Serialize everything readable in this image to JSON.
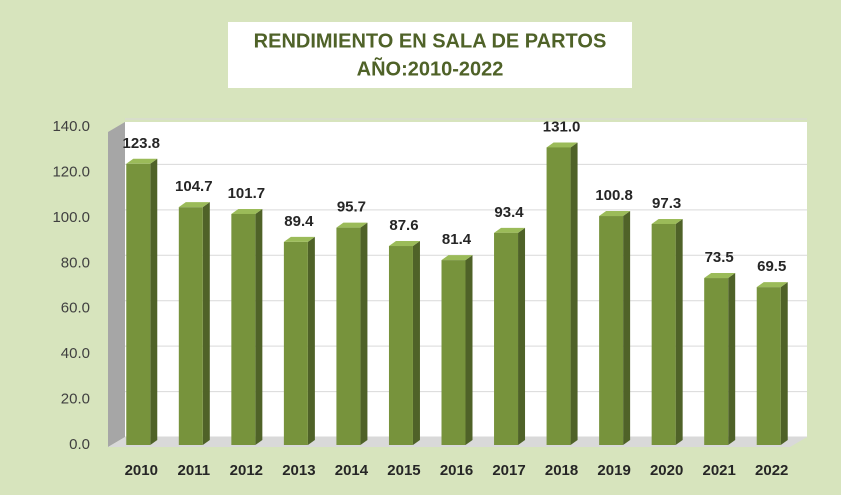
{
  "chart_data": {
    "type": "bar",
    "title": "RENDIMIENTO EN SALA DE PARTOS",
    "subtitle": "AÑO:2010-2022",
    "categories": [
      "2010",
      "2011",
      "2012",
      "2013",
      "2014",
      "2015",
      "2016",
      "2017",
      "2018",
      "2019",
      "2020",
      "2021",
      "2022"
    ],
    "values": [
      123.8,
      104.7,
      101.7,
      89.4,
      95.7,
      87.6,
      81.4,
      93.4,
      131.0,
      100.8,
      97.3,
      73.5,
      69.5
    ],
    "value_labels": [
      "123.8",
      "104.7",
      "101.7",
      "89.4",
      "95.7",
      "87.6",
      "81.4",
      "93.4",
      "131.0",
      "100.8",
      "97.3",
      "73.5",
      "69.5"
    ],
    "color": "#77933c",
    "ylim": [
      0,
      140
    ],
    "yticks": [
      {
        "value": 0,
        "label": "0.0"
      },
      {
        "value": 20,
        "label": "20.0"
      },
      {
        "value": 40,
        "label": "40.0"
      },
      {
        "value": 60,
        "label": "60.0"
      },
      {
        "value": 80,
        "label": "80.0"
      },
      {
        "value": 100,
        "label": "100.0"
      },
      {
        "value": 120,
        "label": "120.0"
      },
      {
        "value": 140,
        "label": "140.0"
      }
    ],
    "grid": true
  }
}
